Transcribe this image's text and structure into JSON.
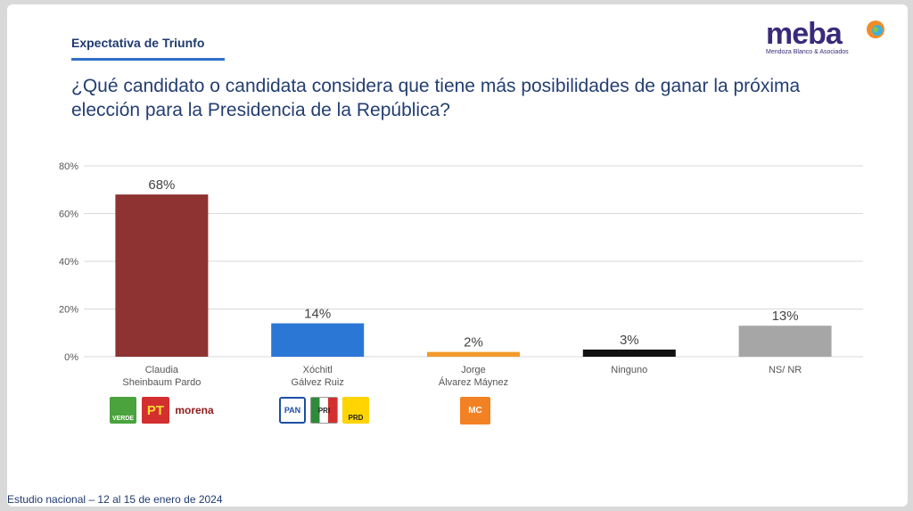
{
  "header": {
    "section": "Expectativa de Triunfo",
    "question": "¿Qué candidato o candidata considera que tiene más posibilidades de ganar la próxima elección para la Presidencia de la República?"
  },
  "logo": {
    "name": "meba",
    "subtitle": "Mendoza Blanco & Asociados"
  },
  "footer": {
    "text": "Estudio nacional – 12 al 15 de enero de 2024"
  },
  "parties": {
    "verde": "VERDE",
    "pt": "PT",
    "morena": "morena",
    "pan": "PAN",
    "pri": "PRI",
    "prd": "PRD",
    "mc": "MC"
  },
  "chart_data": {
    "type": "bar",
    "categories": [
      "Claudia\nSheinbaum Pardo",
      "Xóchitl\nGálvez Ruiz",
      "Jorge\nÁlvarez Máynez",
      "Ninguno",
      "NS/ NR"
    ],
    "values": [
      68,
      14,
      2,
      3,
      13
    ],
    "value_labels": [
      "68%",
      "14%",
      "2%",
      "3%",
      "13%"
    ],
    "colors": [
      "#8e3232",
      "#2a77d6",
      "#f39a2b",
      "#111111",
      "#a6a6a6"
    ],
    "ylim": [
      0,
      80
    ],
    "yticks": [
      "0%",
      "20%",
      "40%",
      "60%",
      "80%"
    ],
    "grid": true,
    "title": "",
    "xlabel": "",
    "ylabel": ""
  }
}
